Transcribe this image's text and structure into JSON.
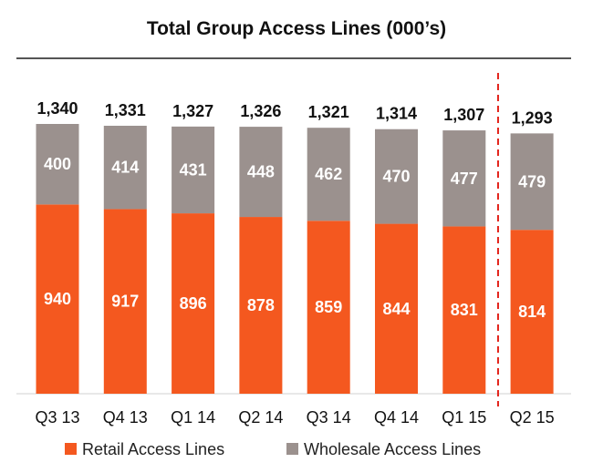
{
  "chart_data": {
    "type": "bar",
    "stacked": true,
    "title": "Total Group Access Lines (000’s)",
    "categories": [
      "Q3 13",
      "Q4 13",
      "Q1 14",
      "Q2 14",
      "Q3 14",
      "Q4 14",
      "Q1 15",
      "Q2 15"
    ],
    "totals": [
      "1,340",
      "1,331",
      "1,327",
      "1,326",
      "1,321",
      "1,314",
      "1,307",
      "1,293"
    ],
    "series": [
      {
        "name": "Retail Access Lines",
        "color": "#f4581f",
        "values": [
          940,
          917,
          896,
          878,
          859,
          844,
          831,
          814
        ]
      },
      {
        "name": "Wholesale Access Lines",
        "color": "#9b918e",
        "values": [
          400,
          414,
          431,
          448,
          462,
          470,
          477,
          479
        ]
      }
    ],
    "ylim": [
      0,
      1340
    ],
    "grid": false,
    "legend_position": "bottom",
    "divider_after_category": "Q1 15",
    "divider_color": "#e32119",
    "title_rule_color": "#555555"
  }
}
